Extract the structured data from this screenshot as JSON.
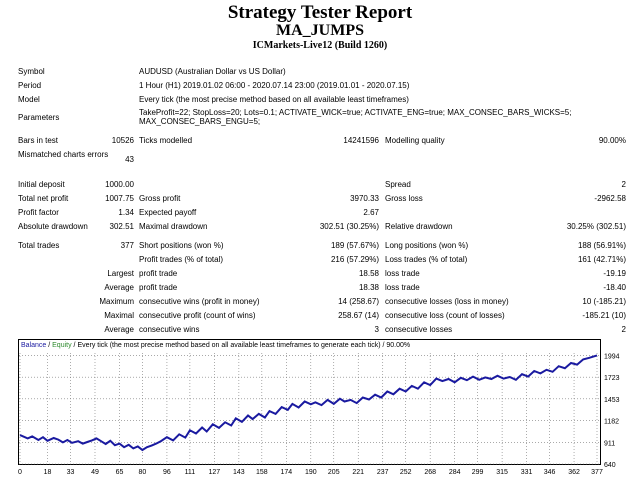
{
  "header": {
    "title": "Strategy Tester Report",
    "expert": "MA_JUMPS",
    "server": "ICMarkets-Live12 (Build 1260)"
  },
  "settings": {
    "symbol_label": "Symbol",
    "symbol": "AUDUSD (Australian Dollar vs US Dollar)",
    "period_label": "Period",
    "period": "1 Hour (H1) 2019.01.02 06:00 - 2020.07.14 23:00 (2019.01.01 - 2020.07.15)",
    "model_label": "Model",
    "model": "Every tick (the most precise method based on all available least timeframes)",
    "parameters_label": "Parameters",
    "parameters": "TakeProfit=22; StopLoss=20; Lots=0.1; ACTIVATE_WICK=true; ACTIVATE_ENG=true; MAX_CONSEC_BARS_WICKS=5; MAX_CONSEC_BARS_ENGU=5;"
  },
  "quality": {
    "bars_label": "Bars in test",
    "bars": "10526",
    "ticks_label": "Ticks modelled",
    "ticks": "14241596",
    "modelling_label": "Modelling quality",
    "modelling": "90.00%",
    "mismatch_label": "Mismatched charts errors",
    "mismatch": "43"
  },
  "results": {
    "initial_deposit_label": "Initial deposit",
    "initial_deposit": "1000.00",
    "spread_label": "Spread",
    "spread": "2",
    "net_profit_label": "Total net profit",
    "net_profit": "1007.75",
    "gross_profit_label": "Gross profit",
    "gross_profit": "3970.33",
    "gross_loss_label": "Gross loss",
    "gross_loss": "-2962.58",
    "profit_factor_label": "Profit factor",
    "profit_factor": "1.34",
    "expected_payoff_label": "Expected payoff",
    "expected_payoff": "2.67",
    "abs_dd_label": "Absolute drawdown",
    "abs_dd": "302.51",
    "max_dd_label": "Maximal drawdown",
    "max_dd": "302.51 (30.25%)",
    "rel_dd_label": "Relative drawdown",
    "rel_dd": "30.25% (302.51)"
  },
  "trades": {
    "total_label": "Total trades",
    "total": "377",
    "short_label": "Short positions (won %)",
    "short": "189 (57.67%)",
    "long_label": "Long positions (won %)",
    "long": "188 (56.91%)",
    "profit_trades_label": "Profit trades (% of total)",
    "profit_trades": "216 (57.29%)",
    "loss_trades_label": "Loss trades (% of total)",
    "loss_trades": "161 (42.71%)",
    "largest_label": "Largest",
    "largest_profit_label": "profit trade",
    "largest_profit": "18.58",
    "largest_loss_label": "loss trade",
    "largest_loss": "-19.19",
    "average_label": "Average",
    "average_profit_label": "profit trade",
    "average_profit": "18.38",
    "average_loss_label": "loss trade",
    "average_loss": "-18.40",
    "maximum_label": "Maximum",
    "max_wins_label": "consecutive wins (profit in money)",
    "max_wins": "14 (258.67)",
    "max_losses_label": "consecutive losses (loss in money)",
    "max_losses": "10 (-185.21)",
    "maximal_label": "Maximal",
    "maximal_profit_label": "consecutive profit (count of wins)",
    "maximal_profit": "258.67 (14)",
    "maximal_loss_label": "consecutive loss (count of losses)",
    "maximal_loss": "-185.21 (10)",
    "avg_label": "Average",
    "avg_wins_label": "consecutive wins",
    "avg_wins": "3",
    "avg_losses_label": "consecutive losses",
    "avg_losses": "2"
  },
  "chart_data": {
    "type": "line",
    "title": {
      "balance": "Balance",
      "sep1": " / ",
      "equity": "Equity",
      "rest": " / Every tick (the most precise method based on all available least timeframes to generate each tick) / 90.00%"
    },
    "colors": {
      "balance": "#1a1aa0",
      "equity": "#2e8b2e"
    },
    "ylim": [
      640,
      2025
    ],
    "yticks": [
      "1994",
      "1723",
      "1453",
      "1182",
      "911",
      "640"
    ],
    "ytick_values": [
      1994,
      1723,
      1453,
      1182,
      911,
      640
    ],
    "xlim": [
      0,
      377
    ],
    "xticks": [
      "0",
      "18",
      "33",
      "49",
      "65",
      "80",
      "96",
      "111",
      "127",
      "143",
      "158",
      "174",
      "190",
      "205",
      "221",
      "237",
      "252",
      "268",
      "284",
      "299",
      "315",
      "331",
      "346",
      "362",
      "377"
    ],
    "grid": true,
    "series": [
      {
        "name": "Balance",
        "x": [
          0,
          5,
          8,
          12,
          15,
          18,
          22,
          25,
          28,
          31,
          34,
          38,
          41,
          44,
          47,
          50,
          53,
          56,
          59,
          62,
          65,
          68,
          71,
          74,
          77,
          80,
          83,
          86,
          89,
          92,
          96,
          100,
          104,
          108,
          111,
          115,
          119,
          122,
          126,
          130,
          134,
          138,
          141,
          145,
          149,
          152,
          156,
          160,
          163,
          167,
          171,
          175,
          178,
          182,
          186,
          190,
          193,
          197,
          201,
          205,
          209,
          212,
          216,
          220,
          224,
          228,
          232,
          236,
          240,
          244,
          248,
          252,
          256,
          260,
          264,
          268,
          272,
          276,
          280,
          284,
          288,
          292,
          296,
          300,
          304,
          308,
          312,
          316,
          320,
          324,
          328,
          332,
          336,
          340,
          344,
          348,
          352,
          356,
          360,
          364,
          368,
          372,
          377
        ],
        "y": [
          1000,
          960,
          985,
          940,
          975,
          930,
          965,
          945,
          910,
          940,
          905,
          925,
          895,
          915,
          935,
          960,
          925,
          890,
          930,
          875,
          895,
          850,
          880,
          835,
          860,
          815,
          850,
          870,
          895,
          925,
          975,
          935,
          1010,
          970,
          1060,
          1020,
          1095,
          1045,
          1135,
          1090,
          1160,
          1120,
          1210,
          1165,
          1245,
          1200,
          1265,
          1220,
          1300,
          1265,
          1350,
          1315,
          1390,
          1345,
          1420,
          1385,
          1410,
          1375,
          1440,
          1390,
          1455,
          1420,
          1440,
          1400,
          1470,
          1445,
          1505,
          1470,
          1545,
          1510,
          1580,
          1545,
          1615,
          1580,
          1660,
          1625,
          1705,
          1675,
          1700,
          1660,
          1715,
          1685,
          1730,
          1690,
          1720,
          1700,
          1740,
          1705,
          1725,
          1690,
          1760,
          1730,
          1800,
          1770,
          1815,
          1790,
          1860,
          1835,
          1900,
          1880,
          1945,
          1965,
          1995
        ]
      }
    ]
  }
}
